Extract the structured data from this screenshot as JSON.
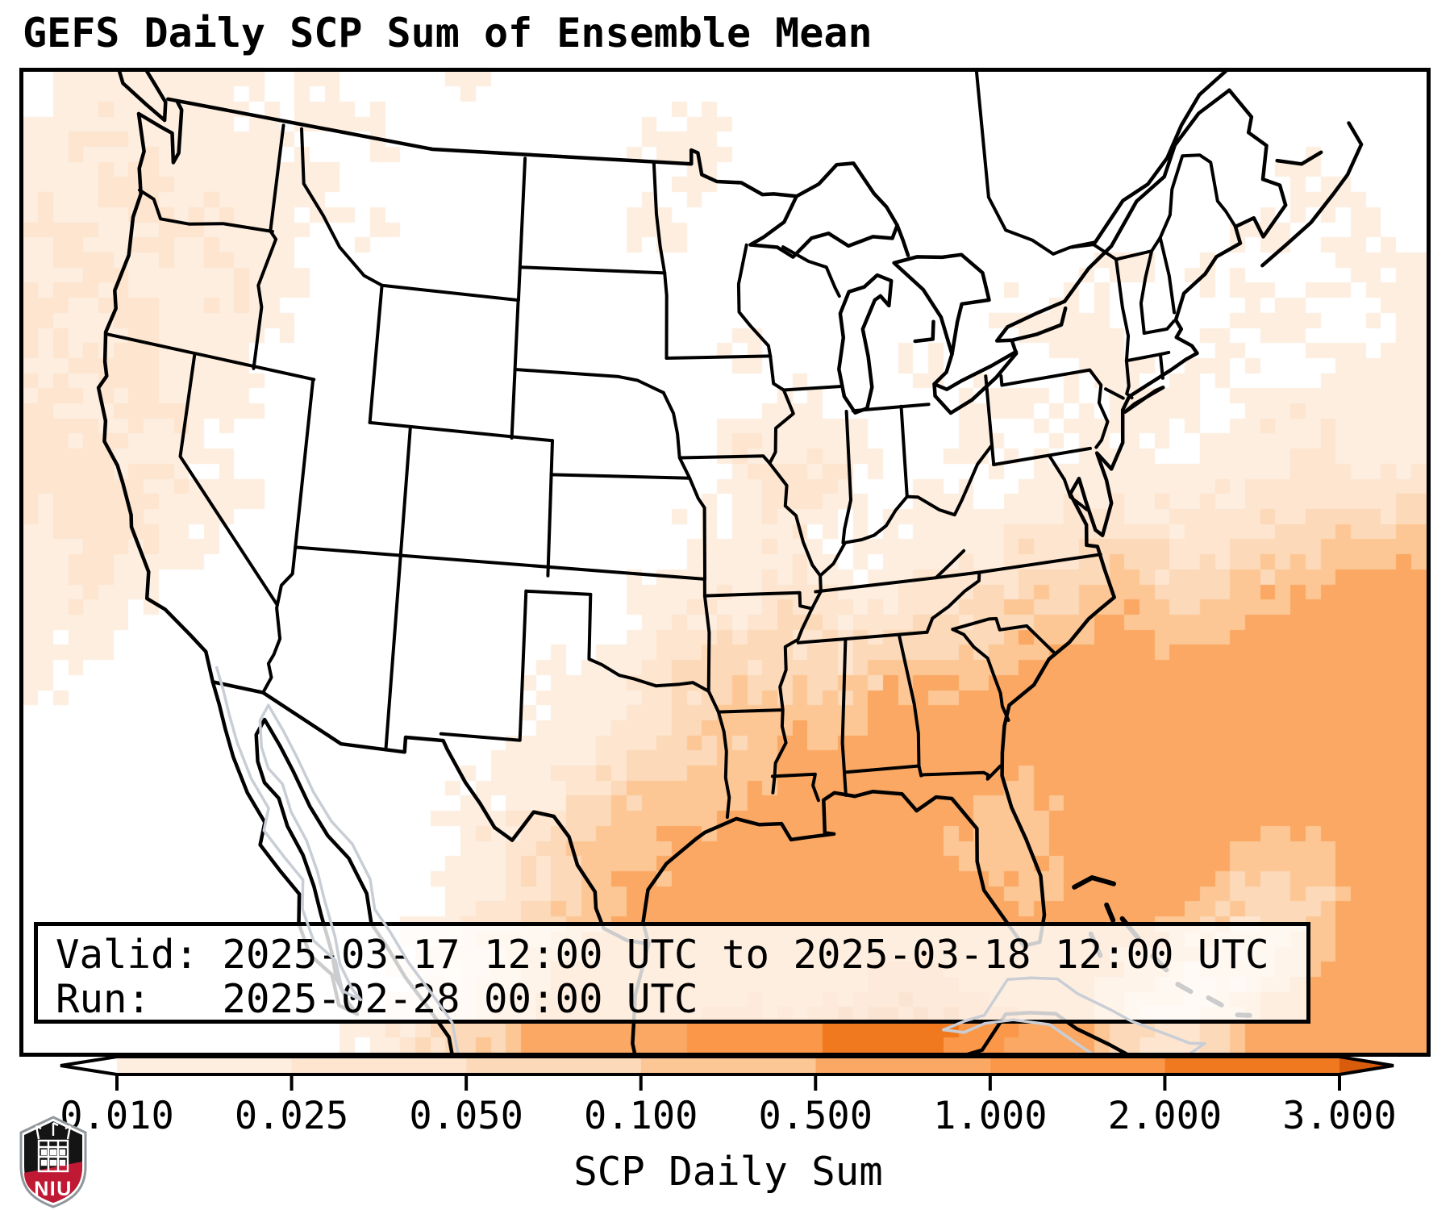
{
  "title": "GEFS Daily SCP Sum of Ensemble Mean",
  "info_box": {
    "valid_line": "Valid: 2025-03-17 12:00 UTC to 2025-03-18 12:00 UTC",
    "run_line": "Run:   2025-02-28 00:00 UTC"
  },
  "logo": {
    "text": "NIU",
    "red": "#c01933",
    "black": "#141414",
    "gray": "#8f969c"
  },
  "chart_data": {
    "type": "heatmap",
    "title": "GEFS Daily SCP Sum of Ensemble Mean",
    "projection": "Lambert Conformal (CONUS)",
    "valid": "2025-03-17 12:00 UTC to 2025-03-18 12:00 UTC",
    "run": "2025-02-28 00:00 UTC",
    "colorbar": {
      "label": "SCP Daily Sum",
      "orientation": "horizontal",
      "extend": "both",
      "tick_labels": [
        "0.010",
        "0.025",
        "0.050",
        "0.100",
        "0.500",
        "1.000",
        "2.000",
        "3.000"
      ],
      "boundaries": [
        0.01,
        0.025,
        0.05,
        0.1,
        0.5,
        1.0,
        2.0,
        3.0
      ],
      "bin_colors": [
        "#ffffff",
        "#fdeedf",
        "#fde5cf",
        "#fcd9b8",
        "#fcc795",
        "#faa863",
        "#fb9748",
        "#f0791f",
        "#d85c0b"
      ],
      "outline_color": "#000000"
    },
    "grid": {
      "note": "coarse 30x22 field of SCP daily-sum bins; 0=<0.01 (white) through 8=>3.0 (dark orange), bin index refers to bin_colors",
      "cols": 30,
      "rows": 22,
      "rows_data": [
        "011110100100000000000000000000",
        "121111010000011000000000000000",
        "112111100000001000000000000100",
        "212211010000010000000000001010",
        "121121000000000000000001010011",
        "212111000000000000000110001101",
        "122110000000000100010011010011",
        "212110000000000010001101101111",
        "221100000000000212001011011211",
        "222110000000000121010111112222",
        "122100000000001110111223223344",
        "121000000000011121122334334455",
        "110000000000012232233445445555",
        "100000000001123333444555555555",
        "000000000001123444555555555555",
        "000000000011234455555555555555",
        "000000000112344555554455555555",
        "000000000123445555554455554455",
        "000000000123455555555455543355",
        "000000001234555555555555432455",
        "000000001235555555665554324555",
        "000000012345556667776553235555"
      ]
    },
    "map_line_colors": {
      "borders": "#000000",
      "secondary_coastline": "#c9ced6"
    }
  }
}
